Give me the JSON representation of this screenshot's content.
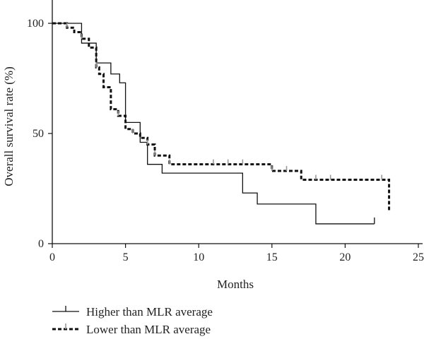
{
  "chart_data": {
    "type": "line",
    "subtype": "kaplan-meier-step",
    "title": "",
    "xlabel": "Months",
    "ylabel": "Overall survival rate (%)",
    "xlim": [
      0,
      25
    ],
    "ylim": [
      0,
      100
    ],
    "xticks": [
      0,
      5,
      10,
      15,
      20,
      25
    ],
    "yticks": [
      0,
      50,
      100
    ],
    "grid": false,
    "legend_position": "bottom-left",
    "series": [
      {
        "name": "Higher than MLR average",
        "style": "solid",
        "color": "#111111",
        "steps": [
          {
            "x": 0,
            "y": 100
          },
          {
            "x": 2,
            "y": 91
          },
          {
            "x": 3,
            "y": 82
          },
          {
            "x": 4,
            "y": 77
          },
          {
            "x": 4.6,
            "y": 73
          },
          {
            "x": 5,
            "y": 55
          },
          {
            "x": 6,
            "y": 46
          },
          {
            "x": 6.5,
            "y": 36
          },
          {
            "x": 7.5,
            "y": 32
          },
          {
            "x": 13,
            "y": 23
          },
          {
            "x": 14,
            "y": 18
          },
          {
            "x": 18,
            "y": 9
          }
        ],
        "end_x": 22,
        "censored": [
          22
        ]
      },
      {
        "name": "Lower than MLR average",
        "style": "dashed",
        "color": "#111111",
        "steps": [
          {
            "x": 0,
            "y": 100
          },
          {
            "x": 1,
            "y": 98
          },
          {
            "x": 1.5,
            "y": 96
          },
          {
            "x": 2,
            "y": 93
          },
          {
            "x": 2.5,
            "y": 89
          },
          {
            "x": 3,
            "y": 80
          },
          {
            "x": 3.2,
            "y": 77
          },
          {
            "x": 3.5,
            "y": 71
          },
          {
            "x": 4,
            "y": 61
          },
          {
            "x": 4.5,
            "y": 58
          },
          {
            "x": 5,
            "y": 52
          },
          {
            "x": 5.5,
            "y": 50
          },
          {
            "x": 6,
            "y": 48
          },
          {
            "x": 6.5,
            "y": 45
          },
          {
            "x": 7,
            "y": 40
          },
          {
            "x": 8,
            "y": 36
          },
          {
            "x": 15,
            "y": 33
          },
          {
            "x": 17,
            "y": 29
          },
          {
            "x": 23,
            "y": 15
          }
        ],
        "end_x": 23,
        "censored": [
          1,
          2,
          3,
          4.5,
          5.5,
          6.5,
          7,
          8,
          11,
          12,
          13,
          15,
          16,
          18,
          19,
          22.5
        ]
      }
    ]
  }
}
